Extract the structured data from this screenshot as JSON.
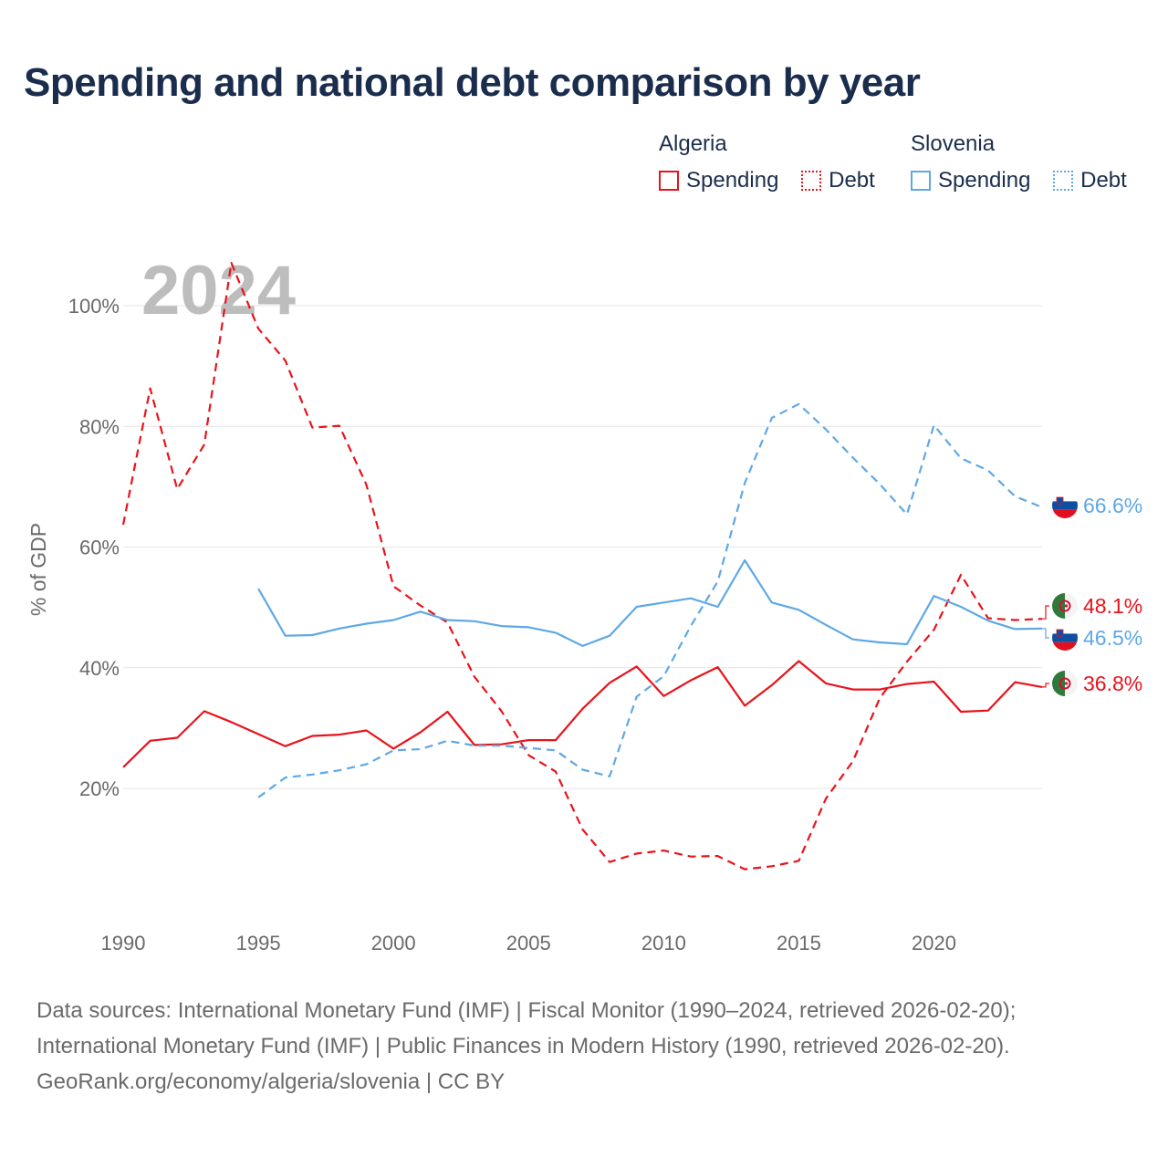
{
  "title": "Spending and national debt comparison by year",
  "colors": {
    "algeria": "#e8131b",
    "slovenia": "#5ea8e6",
    "text": "#1b2d4d",
    "axis_text": "#6a6a6a",
    "grid": "#e6e6e6",
    "year_watermark": "#bdbdbd"
  },
  "legend": {
    "groups": [
      {
        "name": "Algeria",
        "items": [
          {
            "label": "Spending",
            "style": "solid"
          },
          {
            "label": "Debt",
            "style": "dotted"
          }
        ]
      },
      {
        "name": "Slovenia",
        "items": [
          {
            "label": "Spending",
            "style": "solid"
          },
          {
            "label": "Debt",
            "style": "dotted"
          }
        ]
      }
    ]
  },
  "chart_data": {
    "type": "line",
    "year_label": "2024",
    "ylabel": "% of GDP",
    "xlim": [
      1990,
      2024
    ],
    "ylim": [
      0,
      110
    ],
    "x_ticks": [
      1990,
      1995,
      2000,
      2005,
      2010,
      2015,
      2020
    ],
    "y_ticks": [
      {
        "value": 20,
        "label": "20%"
      },
      {
        "value": 40,
        "label": "40%"
      },
      {
        "value": 60,
        "label": "60%"
      },
      {
        "value": 80,
        "label": "80%"
      },
      {
        "value": 100,
        "label": "100%"
      }
    ],
    "series": [
      {
        "name": "Algeria Spending",
        "country": "Algeria",
        "metric": "Spending",
        "color": "#e8131b",
        "dash": "none",
        "x": [
          1990,
          1991,
          1992,
          1993,
          1994,
          1995,
          1996,
          1997,
          1998,
          1999,
          2000,
          2001,
          2002,
          2003,
          2004,
          2005,
          2006,
          2007,
          2008,
          2009,
          2010,
          2011,
          2012,
          2013,
          2014,
          2015,
          2016,
          2017,
          2018,
          2019,
          2020,
          2021,
          2022,
          2023,
          2024
        ],
        "values": [
          23.5,
          27.9,
          28.4,
          32.8,
          31.0,
          29.0,
          27.0,
          28.7,
          28.9,
          29.6,
          26.6,
          29.3,
          32.7,
          27.2,
          27.3,
          28.0,
          28.0,
          33.2,
          37.5,
          40.2,
          35.3,
          37.9,
          40.1,
          33.7,
          37.1,
          41.1,
          37.4,
          36.4,
          36.4,
          37.3,
          37.7,
          32.7,
          32.9,
          37.6,
          36.8
        ],
        "end_label": "36.8%"
      },
      {
        "name": "Algeria Debt",
        "country": "Algeria",
        "metric": "Debt",
        "color": "#e8131b",
        "dash": "9 6",
        "x": [
          1990,
          1991,
          1992,
          1993,
          1994,
          1995,
          1996,
          1997,
          1998,
          1999,
          2000,
          2001,
          2002,
          2003,
          2004,
          2005,
          2006,
          2007,
          2008,
          2009,
          2010,
          2011,
          2012,
          2013,
          2014,
          2015,
          2016,
          2017,
          2018,
          2019,
          2020,
          2021,
          2022,
          2023,
          2024
        ],
        "values": [
          63.7,
          86.3,
          69.6,
          77.0,
          107.1,
          96.2,
          90.9,
          79.8,
          80.1,
          70.3,
          53.5,
          50.3,
          47.5,
          38.5,
          32.8,
          25.5,
          22.8,
          13.2,
          7.8,
          9.2,
          9.7,
          8.7,
          8.8,
          6.6,
          7.1,
          8.0,
          18.3,
          24.5,
          35.0,
          41.0,
          46.3,
          55.4,
          48.2,
          47.9,
          48.1
        ],
        "end_label": "48.1%"
      },
      {
        "name": "Slovenia Spending",
        "country": "Slovenia",
        "metric": "Spending",
        "color": "#5ea8e6",
        "dash": "none",
        "x": [
          1995,
          1996,
          1997,
          1998,
          1999,
          2000,
          2001,
          2002,
          2003,
          2004,
          2005,
          2006,
          2007,
          2008,
          2009,
          2010,
          2011,
          2012,
          2013,
          2014,
          2015,
          2016,
          2017,
          2018,
          2019,
          2020,
          2021,
          2022,
          2023,
          2024
        ],
        "values": [
          53.1,
          45.3,
          45.4,
          46.5,
          47.3,
          47.9,
          49.3,
          47.9,
          47.7,
          46.9,
          46.7,
          45.8,
          43.6,
          45.3,
          50.1,
          50.8,
          51.5,
          50.1,
          57.8,
          50.8,
          49.6,
          47.1,
          44.7,
          44.2,
          43.9,
          51.9,
          50.1,
          47.8,
          46.4,
          46.5
        ],
        "end_label": "46.5%"
      },
      {
        "name": "Slovenia Debt",
        "country": "Slovenia",
        "metric": "Debt",
        "color": "#5ea8e6",
        "dash": "9 6",
        "x": [
          1995,
          1996,
          1997,
          1998,
          1999,
          2000,
          2001,
          2002,
          2003,
          2004,
          2005,
          2006,
          2007,
          2008,
          2009,
          2010,
          2011,
          2012,
          2013,
          2014,
          2015,
          2016,
          2017,
          2018,
          2019,
          2020,
          2021,
          2022,
          2023,
          2024
        ],
        "values": [
          18.5,
          21.8,
          22.3,
          23.0,
          24.0,
          26.3,
          26.5,
          27.9,
          27.1,
          27.1,
          26.7,
          26.3,
          23.1,
          22.0,
          35.2,
          38.6,
          46.9,
          54.3,
          70.6,
          81.4,
          83.7,
          79.5,
          74.8,
          70.4,
          65.4,
          80.2,
          74.7,
          72.7,
          68.4,
          66.6
        ],
        "end_label": "66.6%"
      }
    ]
  },
  "footer": {
    "line1": "Data sources: International Monetary Fund (IMF) | Fiscal Monitor (1990–2024, retrieved 2026-02-20);",
    "line2": "International Monetary Fund (IMF) | Public Finances in Modern History (1990, retrieved 2026-02-20).",
    "line3": "GeoRank.org/economy/algeria/slovenia | CC BY"
  }
}
